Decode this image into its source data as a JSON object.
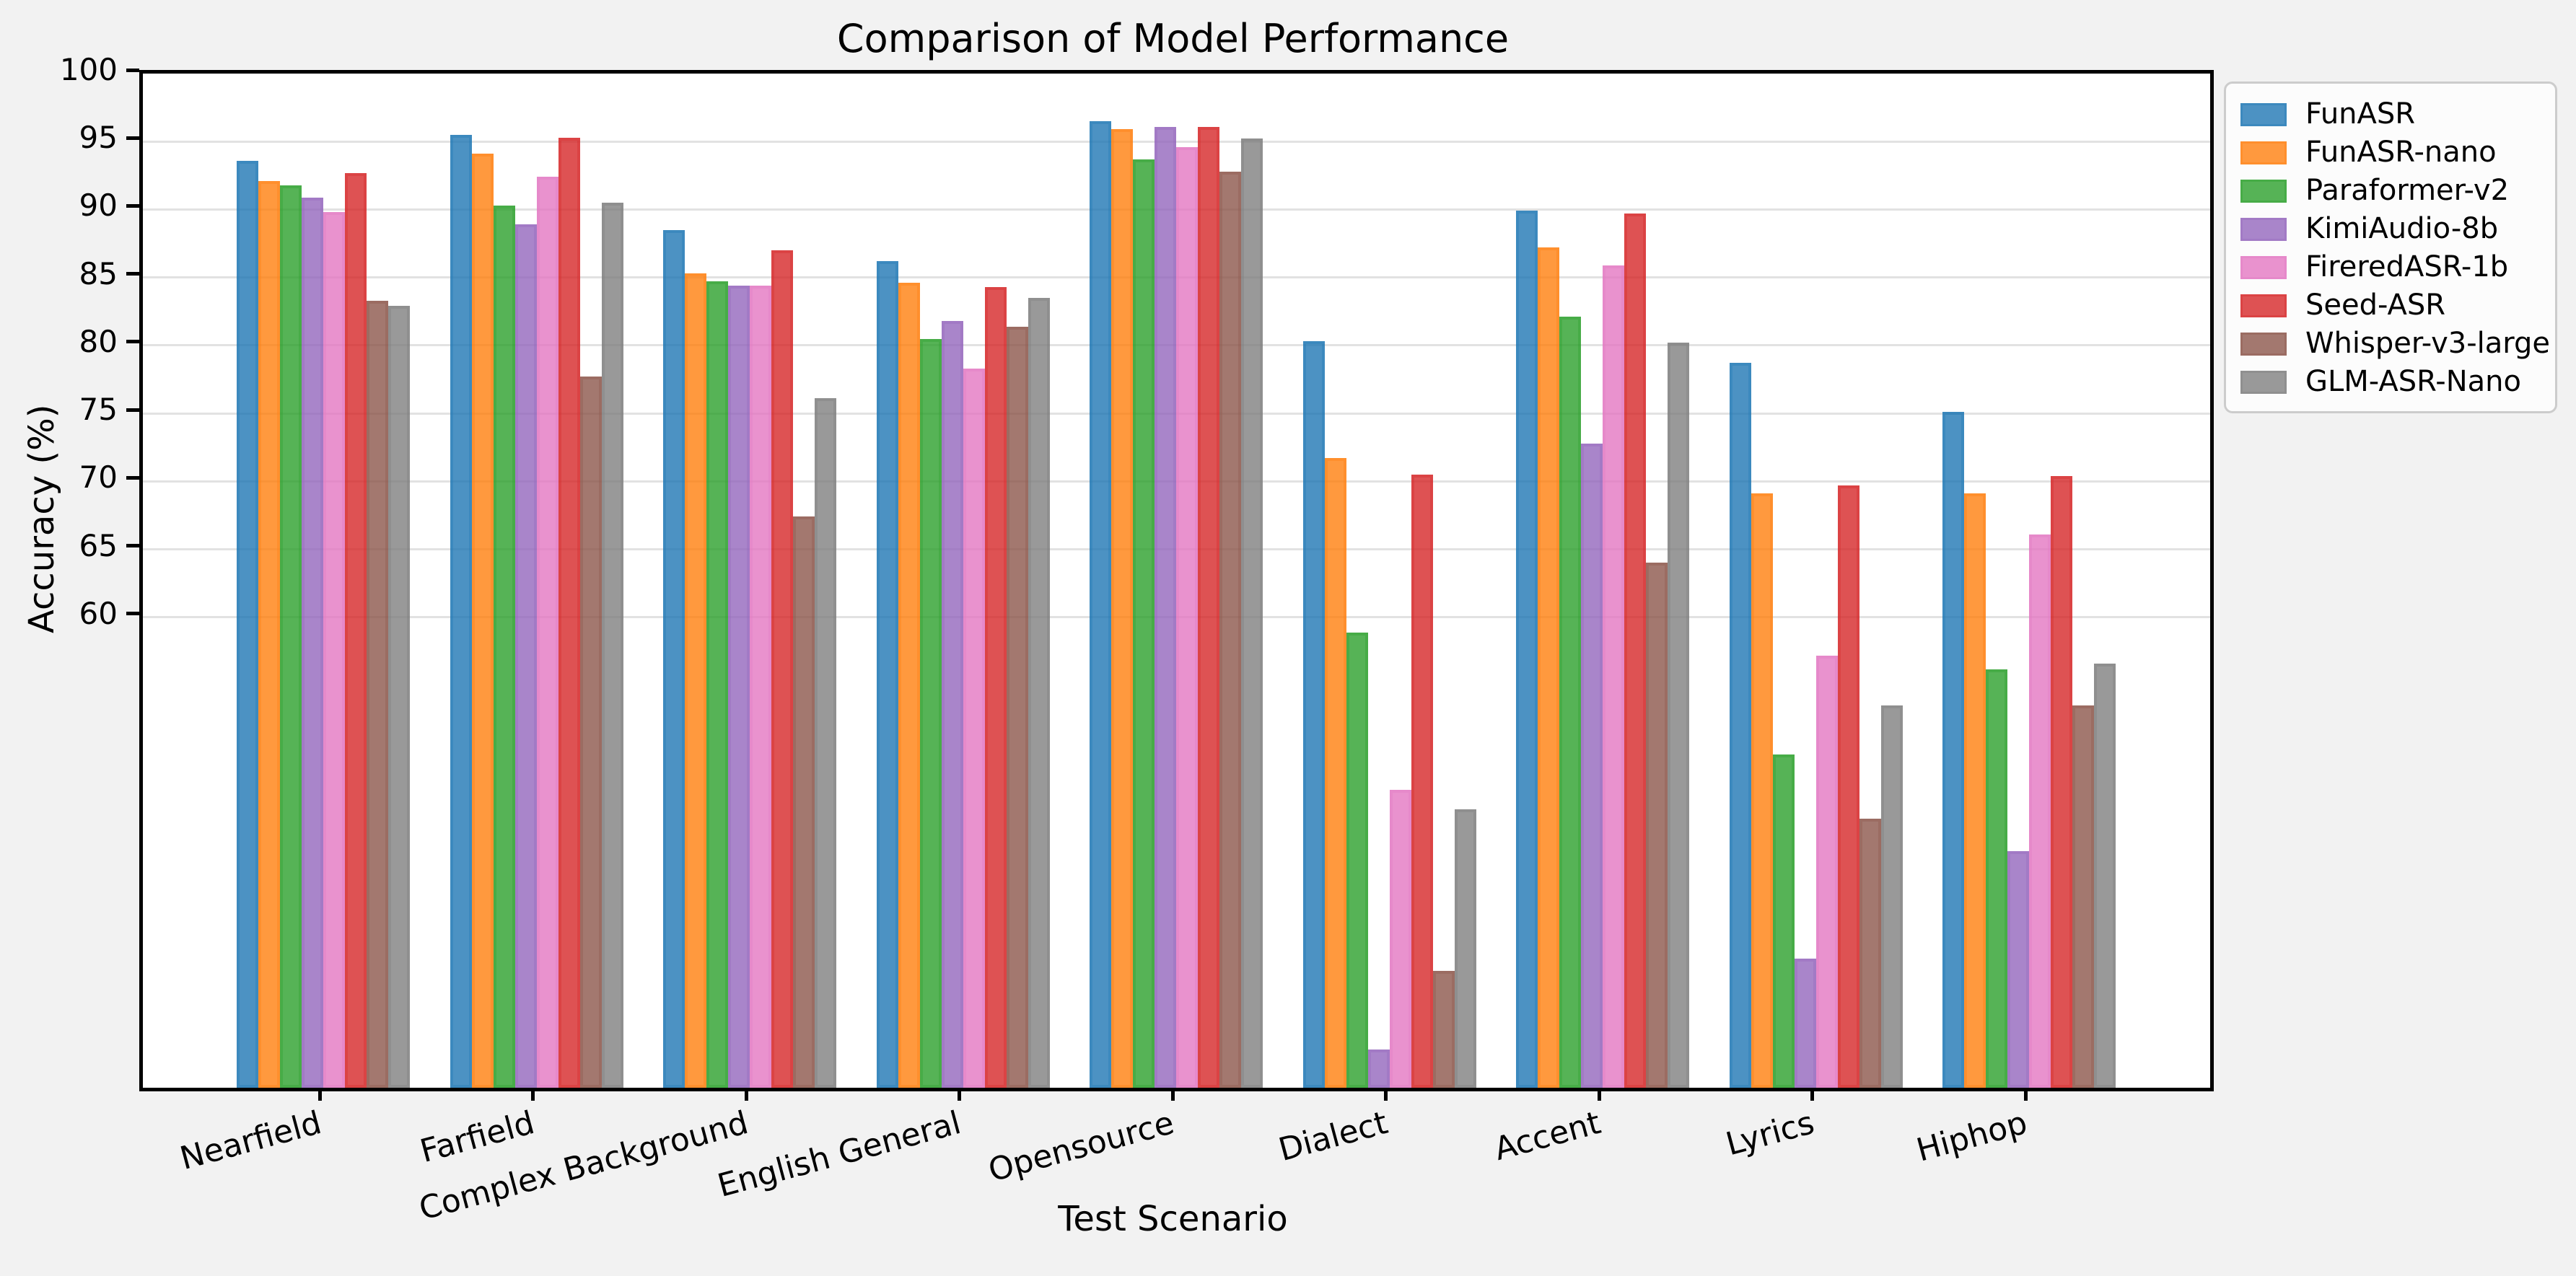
{
  "chart_data": {
    "type": "bar",
    "title": "Comparison of Model Performance",
    "xlabel": "Test Scenario",
    "ylabel": "Accuracy (%)",
    "categories": [
      "Nearfield",
      "Farfield",
      "Complex Background",
      "English General",
      "Opensource",
      "Dialect",
      "Accent",
      "Lyrics",
      "Hiphop"
    ],
    "series": [
      {
        "name": "FunASR",
        "color": "#1f77b4",
        "values": [
          93.6,
          95.5,
          88.5,
          86.2,
          96.5,
          80.3,
          89.9,
          78.7,
          75.1
        ]
      },
      {
        "name": "FunASR-nano",
        "color": "#ff7f0e",
        "values": [
          92.1,
          94.1,
          85.3,
          84.6,
          95.9,
          71.7,
          87.2,
          69.1,
          69.1
        ]
      },
      {
        "name": "Paraformer-v2",
        "color": "#2ca02c",
        "values": [
          91.8,
          90.3,
          84.7,
          80.5,
          93.7,
          58.9,
          82.1,
          49.9,
          56.2
        ]
      },
      {
        "name": "KimiAudio-8b",
        "color": "#9467bd",
        "values": [
          90.9,
          88.9,
          84.4,
          81.8,
          96.1,
          28.2,
          72.8,
          34.9,
          42.8
        ]
      },
      {
        "name": "FireredASR-1b",
        "color": "#e377c2",
        "values": [
          89.8,
          92.4,
          84.4,
          78.3,
          94.6,
          47.3,
          85.9,
          57.2,
          66.1
        ]
      },
      {
        "name": "Seed-ASR",
        "color": "#d62728",
        "values": [
          92.7,
          95.3,
          87.0,
          84.3,
          96.1,
          70.5,
          89.7,
          69.7,
          70.4
        ]
      },
      {
        "name": "Whisper-v3-large",
        "color": "#8c564b",
        "values": [
          83.3,
          77.7,
          67.4,
          81.4,
          92.8,
          34.0,
          64.0,
          45.2,
          53.5
        ]
      },
      {
        "name": "GLM-ASR-Nano",
        "color": "#7f7f7f",
        "values": [
          82.9,
          90.5,
          76.1,
          83.5,
          95.2,
          45.9,
          80.2,
          53.5,
          56.6
        ]
      }
    ],
    "yticks": [
      100,
      95,
      90,
      85,
      80,
      75,
      70,
      65,
      60
    ],
    "ylim": [
      25.4,
      100
    ],
    "grid": true,
    "legend_position": "upper-right-outside"
  },
  "style_colors": {
    "figure_background": "#f2f2f2",
    "axes_background": "#ffffff",
    "grid_color": "#e2e2e2",
    "spine_color": "#000000",
    "legend_background": "#fcfcfc",
    "legend_border": "#cccccc",
    "bar_alpha": 0.8,
    "bar_edge_alpha": 0.35
  }
}
